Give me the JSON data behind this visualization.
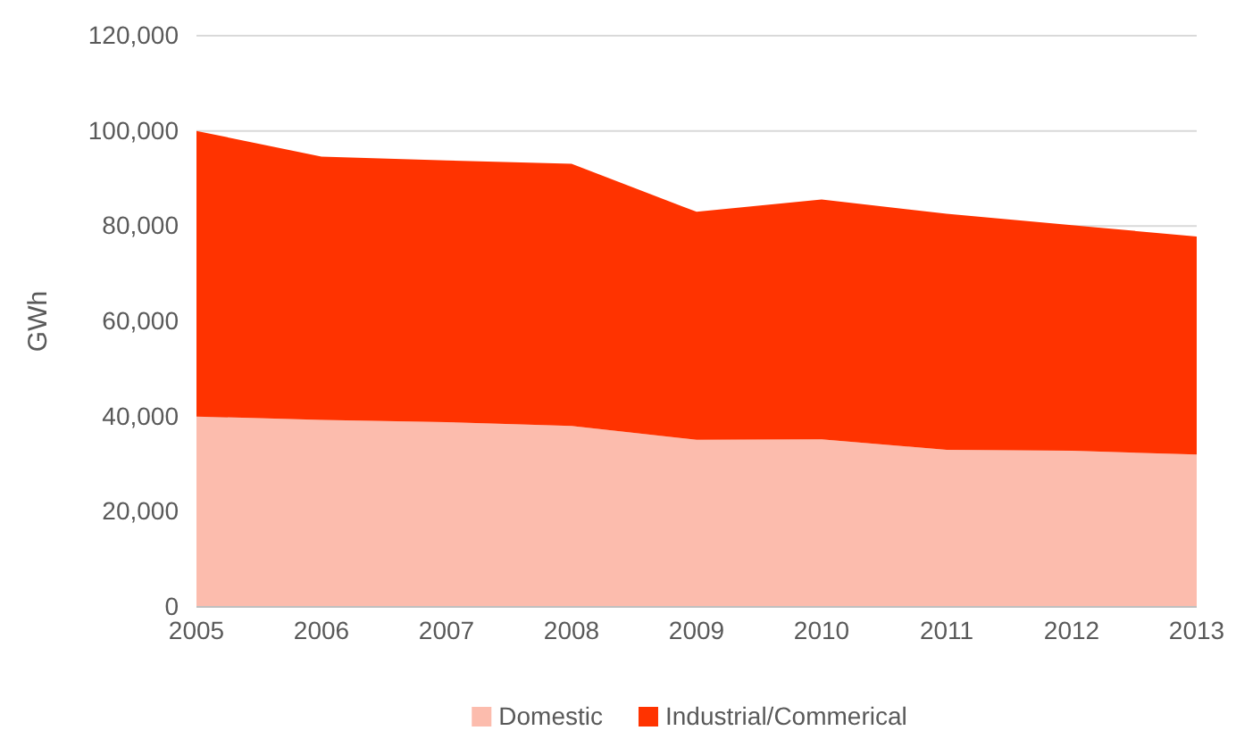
{
  "chart_data": {
    "type": "area",
    "stacked": true,
    "ylabel": "GWh",
    "x": [
      2005,
      2006,
      2007,
      2008,
      2009,
      2010,
      2011,
      2012,
      2013
    ],
    "series": [
      {
        "name": "Domestic",
        "color": "#fcbcad",
        "values": [
          40000,
          39300,
          38800,
          38000,
          35100,
          35200,
          33000,
          32800,
          32000
        ]
      },
      {
        "name": "Industrial/Commerical",
        "color": "#ff3300",
        "values": [
          60000,
          55300,
          55000,
          55100,
          47900,
          50400,
          49600,
          47400,
          45800
        ]
      }
    ],
    "xlim": [
      2005,
      2013
    ],
    "xticks": [
      2005,
      2006,
      2007,
      2008,
      2009,
      2010,
      2011,
      2012,
      2013
    ],
    "ylim": [
      0,
      120000
    ],
    "yticks": [
      0,
      {
        "value": 20000,
        "label": "20,000"
      },
      {
        "value": 40000,
        "label": "40,000"
      },
      {
        "value": 60000,
        "label": "60,000"
      },
      {
        "value": 80000,
        "label": "80,000"
      },
      {
        "value": 100000,
        "label": "100,000"
      },
      {
        "value": 120000,
        "label": "120,000"
      }
    ],
    "grid": "y",
    "legend": "bottom"
  }
}
